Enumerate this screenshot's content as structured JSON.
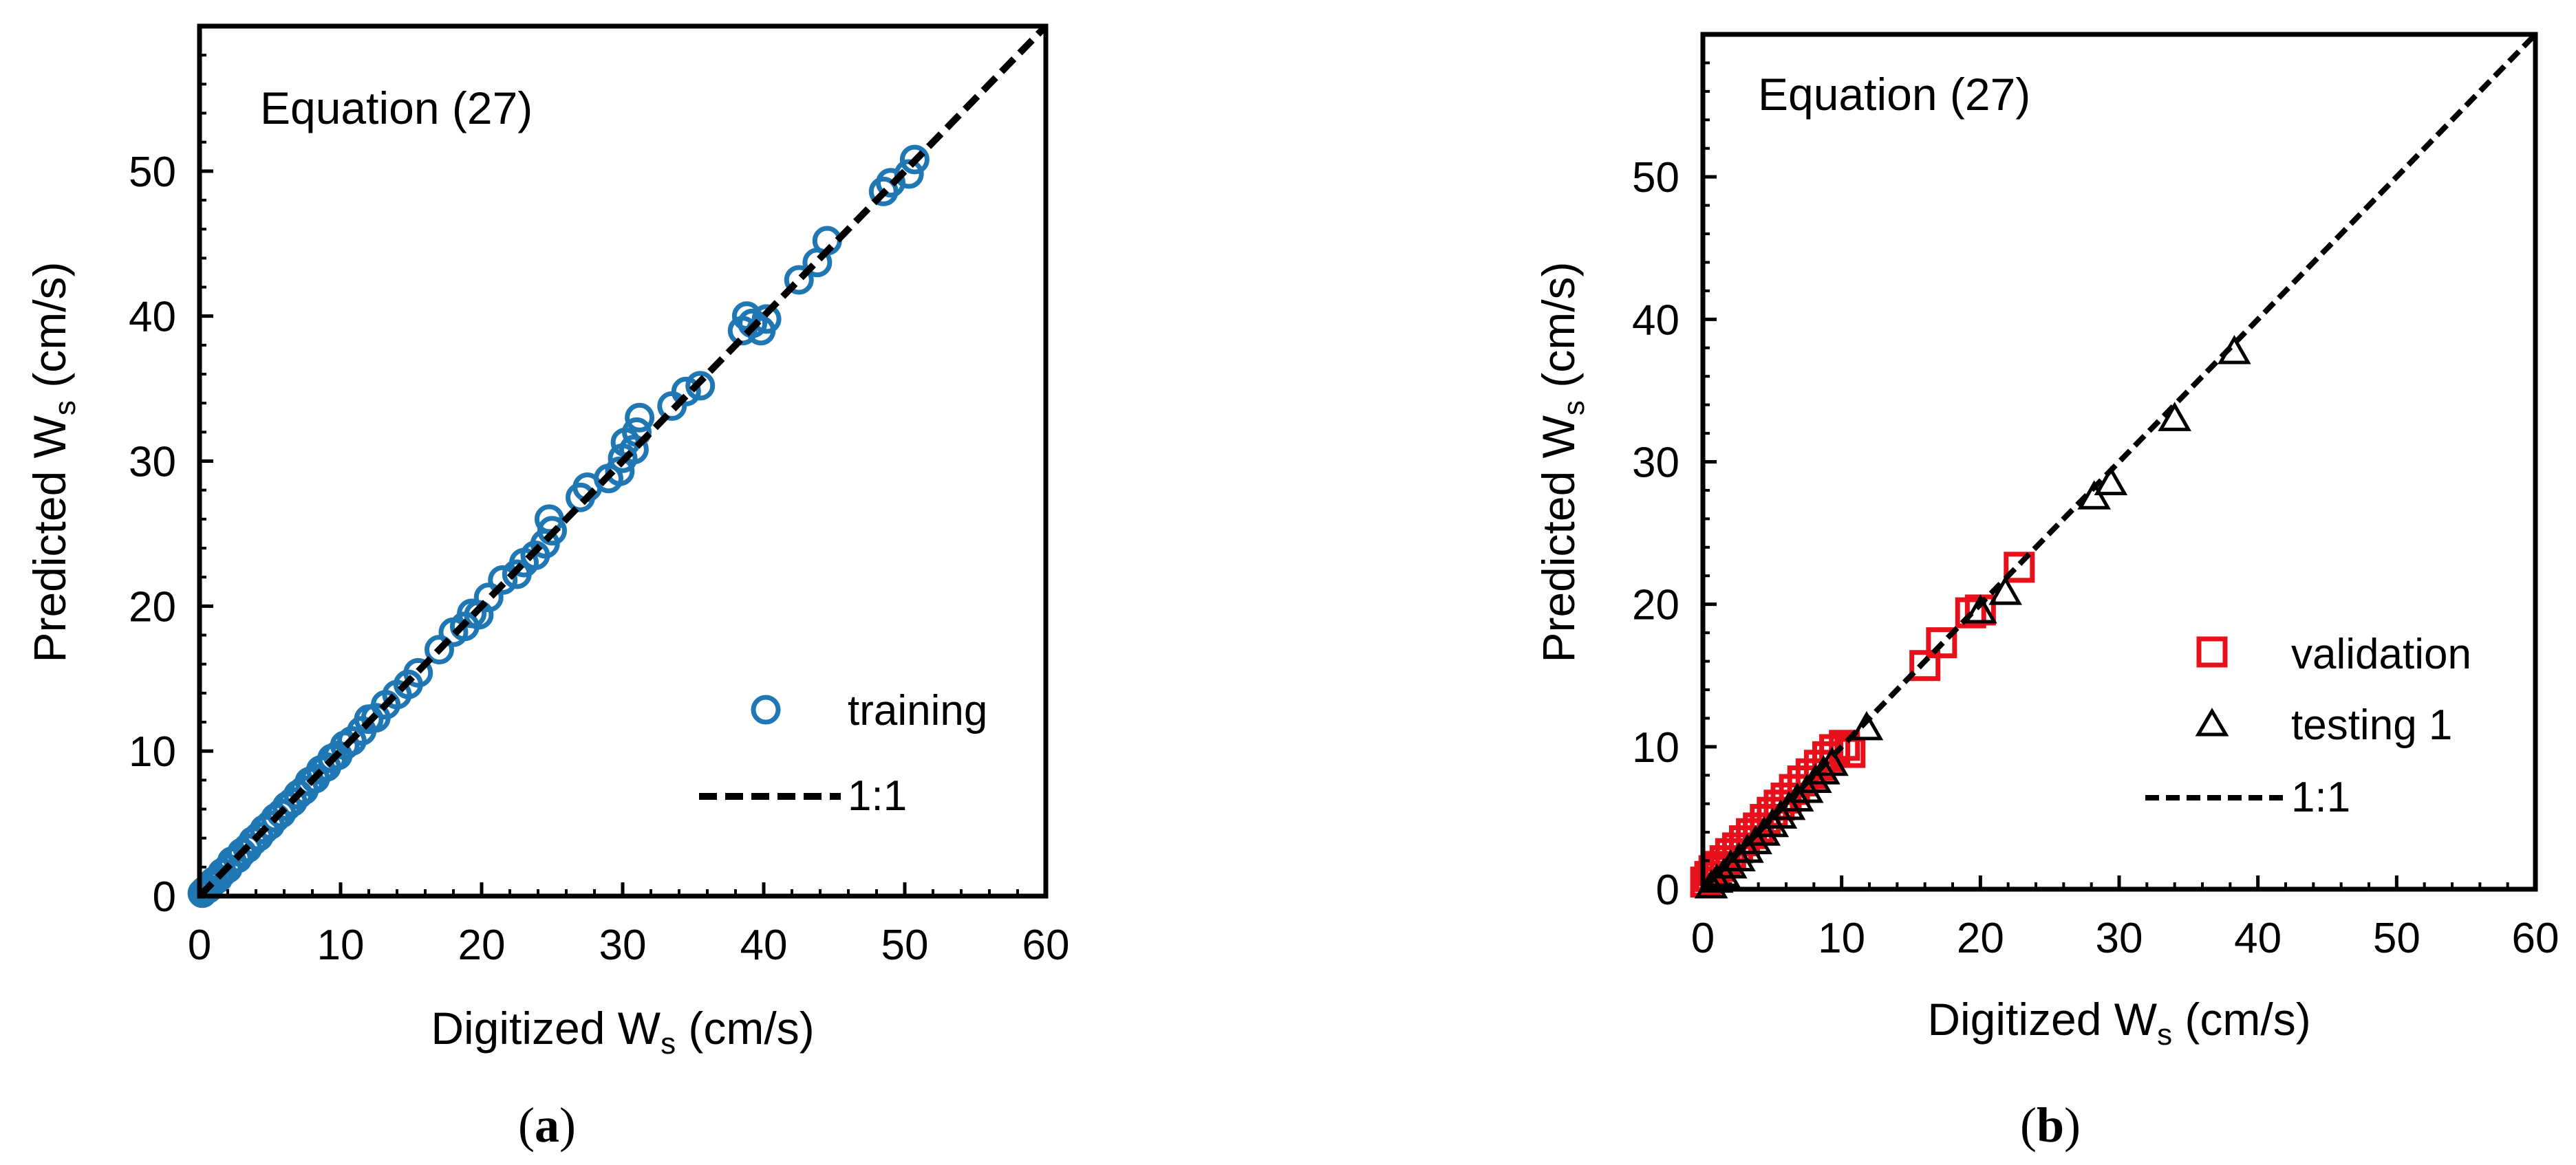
{
  "chart_data": [
    {
      "id": "a",
      "type": "scatter",
      "title": "Equation (27)",
      "caption_letter": "a",
      "xlabel": "Digitized W",
      "xlabel_sub": "s",
      "xlabel_unit": " (cm/s)",
      "ylabel": "Predicted W",
      "ylabel_sub": "s",
      "ylabel_unit": " (cm/s)",
      "xlim": [
        0,
        60
      ],
      "ylim": [
        0,
        60
      ],
      "xticks": [
        0,
        10,
        20,
        30,
        40,
        50,
        60
      ],
      "yticks": [
        0,
        10,
        20,
        30,
        40,
        50
      ],
      "legend_position": "bottom-right",
      "colors": {
        "training": "#1f77b4",
        "line": "#000000"
      },
      "series": [
        {
          "name": "training",
          "marker": "circle",
          "color": "#1f77b4",
          "points": [
            [
              0.2,
              0.2
            ],
            [
              0.4,
              0.4
            ],
            [
              0.6,
              0.5
            ],
            [
              0.8,
              0.8
            ],
            [
              1.0,
              1.0
            ],
            [
              1.3,
              1.2
            ],
            [
              1.6,
              1.6
            ],
            [
              2.0,
              1.9
            ],
            [
              2.3,
              2.4
            ],
            [
              2.7,
              2.6
            ],
            [
              3.0,
              3.0
            ],
            [
              3.4,
              3.3
            ],
            [
              3.8,
              3.8
            ],
            [
              4.2,
              4.1
            ],
            [
              4.6,
              4.6
            ],
            [
              5.0,
              4.9
            ],
            [
              5.4,
              5.4
            ],
            [
              5.8,
              5.7
            ],
            [
              6.2,
              6.2
            ],
            [
              6.6,
              6.5
            ],
            [
              7.0,
              7.0
            ],
            [
              7.4,
              7.3
            ],
            [
              7.8,
              7.9
            ],
            [
              8.2,
              8.1
            ],
            [
              8.6,
              8.7
            ],
            [
              9.0,
              8.9
            ],
            [
              9.4,
              9.5
            ],
            [
              9.8,
              9.7
            ],
            [
              10.3,
              10.4
            ],
            [
              10.8,
              10.7
            ],
            [
              11.5,
              11.4
            ],
            [
              12.0,
              12.2
            ],
            [
              12.5,
              12.3
            ],
            [
              13.2,
              13.2
            ],
            [
              14.0,
              13.9
            ],
            [
              14.8,
              14.6
            ],
            [
              15.5,
              15.4
            ],
            [
              17.0,
              17.0
            ],
            [
              18.0,
              18.2
            ],
            [
              18.8,
              18.6
            ],
            [
              19.3,
              19.5
            ],
            [
              19.8,
              19.4
            ],
            [
              20.5,
              20.6
            ],
            [
              21.5,
              21.8
            ],
            [
              22.5,
              22.2
            ],
            [
              23.0,
              23.0
            ],
            [
              23.8,
              23.5
            ],
            [
              24.5,
              24.3
            ],
            [
              25.0,
              25.2
            ],
            [
              24.8,
              26.0
            ],
            [
              27.0,
              27.5
            ],
            [
              27.5,
              28.2
            ],
            [
              29.0,
              28.8
            ],
            [
              29.8,
              29.3
            ],
            [
              30.0,
              30.2
            ],
            [
              30.2,
              31.3
            ],
            [
              30.8,
              30.8
            ],
            [
              31.0,
              32.0
            ],
            [
              31.2,
              33.0
            ],
            [
              33.5,
              33.8
            ],
            [
              34.5,
              34.8
            ],
            [
              35.5,
              35.2
            ],
            [
              38.5,
              39.0
            ],
            [
              38.8,
              40.0
            ],
            [
              39.2,
              39.5
            ],
            [
              39.8,
              39.0
            ],
            [
              40.2,
              39.8
            ],
            [
              42.5,
              42.5
            ],
            [
              43.8,
              43.7
            ],
            [
              44.5,
              45.2
            ],
            [
              48.5,
              48.6
            ],
            [
              49.0,
              49.2
            ],
            [
              50.3,
              49.8
            ],
            [
              50.7,
              50.8
            ]
          ]
        },
        {
          "name": "1:1",
          "type": "line",
          "x": [
            0,
            60
          ],
          "y": [
            0,
            60
          ],
          "style": "dashed"
        }
      ]
    },
    {
      "id": "b",
      "type": "scatter",
      "title": "Equation (27)",
      "caption_letter": "b",
      "xlabel": "Digitized W",
      "xlabel_sub": "s",
      "xlabel_unit": " (cm/s)",
      "ylabel": "Predicted W",
      "ylabel_sub": "s",
      "ylabel_unit": " (cm/s)",
      "xlim": [
        0,
        60
      ],
      "ylim": [
        0,
        60
      ],
      "xticks": [
        0,
        10,
        20,
        30,
        40,
        50,
        60
      ],
      "yticks": [
        0,
        10,
        20,
        30,
        40,
        50
      ],
      "legend_position": "bottom-right",
      "colors": {
        "validation": "#e8101a",
        "testing": "#000000",
        "line": "#000000"
      },
      "series": [
        {
          "name": "validation",
          "marker": "square",
          "color": "#e8101a",
          "points": [
            [
              0.2,
              0.5
            ],
            [
              0.5,
              0.9
            ],
            [
              0.8,
              1.3
            ],
            [
              1.2,
              1.6
            ],
            [
              1.6,
              2.0
            ],
            [
              2.0,
              2.5
            ],
            [
              2.5,
              2.9
            ],
            [
              3.0,
              3.4
            ],
            [
              3.5,
              3.9
            ],
            [
              4.0,
              4.3
            ],
            [
              4.5,
              4.9
            ],
            [
              5.0,
              5.4
            ],
            [
              5.5,
              5.9
            ],
            [
              6.0,
              6.4
            ],
            [
              6.6,
              7.0
            ],
            [
              7.2,
              7.6
            ],
            [
              7.8,
              8.1
            ],
            [
              8.4,
              8.7
            ],
            [
              9.0,
              9.3
            ],
            [
              9.5,
              9.8
            ],
            [
              10.2,
              10.1
            ],
            [
              10.6,
              9.6
            ],
            [
              16.0,
              15.7
            ],
            [
              17.2,
              17.3
            ],
            [
              19.3,
              19.4
            ],
            [
              20.0,
              19.6
            ],
            [
              22.8,
              22.6
            ]
          ]
        },
        {
          "name": "testing 1",
          "marker": "triangle",
          "color": "#000000",
          "points": [
            [
              0.6,
              0.2
            ],
            [
              1.0,
              0.6
            ],
            [
              1.5,
              1.0
            ],
            [
              2.0,
              1.6
            ],
            [
              2.6,
              2.1
            ],
            [
              3.2,
              2.7
            ],
            [
              3.8,
              3.3
            ],
            [
              4.4,
              3.9
            ],
            [
              5.0,
              4.5
            ],
            [
              5.6,
              5.1
            ],
            [
              6.2,
              5.7
            ],
            [
              6.8,
              6.3
            ],
            [
              7.5,
              6.9
            ],
            [
              8.1,
              7.6
            ],
            [
              8.7,
              8.2
            ],
            [
              9.3,
              8.8
            ],
            [
              11.8,
              11.3
            ],
            [
              20.0,
              19.5
            ],
            [
              21.8,
              20.8
            ],
            [
              28.2,
              27.5
            ],
            [
              29.4,
              28.5
            ],
            [
              34.0,
              33.0
            ],
            [
              38.3,
              37.7
            ]
          ]
        },
        {
          "name": "1:1",
          "type": "line",
          "x": [
            0,
            60
          ],
          "y": [
            0,
            60
          ],
          "style": "dashed"
        }
      ]
    }
  ]
}
